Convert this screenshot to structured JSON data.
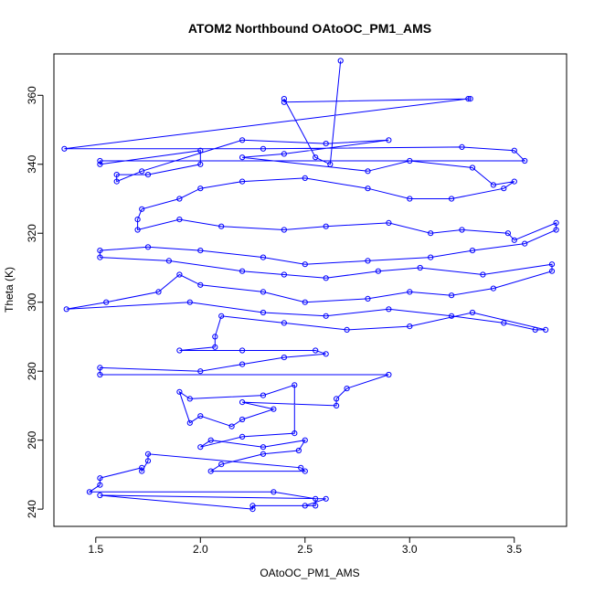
{
  "chart_data": {
    "type": "scatter",
    "title": "ATOM2 Northbound OAtoOC_PM1_AMS",
    "xlabel": "OAtoOC_PM1_AMS",
    "ylabel": "Theta (K)",
    "xlim": [
      1.3,
      3.75
    ],
    "ylim": [
      235,
      372
    ],
    "xticks": [
      1.5,
      2.0,
      2.5,
      3.0,
      3.5
    ],
    "xtick_labels": [
      "1.5",
      "2.0",
      "2.5",
      "3.0",
      "3.5"
    ],
    "yticks": [
      240,
      260,
      280,
      300,
      320,
      340,
      360
    ],
    "ytick_labels": [
      "240",
      "260",
      "280",
      "300",
      "320",
      "340",
      "360"
    ],
    "grid": false,
    "legend": "none",
    "series_color": "#0000ff",
    "markers": "open-circles-connected-by-lines",
    "series": [
      {
        "values_xy": [
          [
            2.67,
            370
          ],
          [
            2.62,
            340
          ],
          [
            2.55,
            342
          ],
          [
            2.4,
            359
          ],
          [
            2.4,
            358
          ],
          [
            3.29,
            359
          ],
          [
            3.28,
            359
          ],
          [
            1.35,
            344.5
          ],
          [
            2.3,
            344.5
          ],
          [
            3.25,
            345
          ],
          [
            3.5,
            344
          ],
          [
            3.55,
            341
          ],
          [
            1.52,
            341
          ],
          [
            1.52,
            340
          ],
          [
            2.0,
            344
          ],
          [
            2.0,
            340
          ],
          [
            1.75,
            337
          ],
          [
            1.6,
            337
          ],
          [
            1.6,
            335
          ],
          [
            1.72,
            338
          ],
          [
            2.2,
            347
          ],
          [
            2.6,
            346
          ],
          [
            2.9,
            347
          ],
          [
            2.4,
            343
          ],
          [
            2.2,
            342
          ],
          [
            2.8,
            338
          ],
          [
            3.0,
            341
          ],
          [
            3.3,
            339
          ],
          [
            3.4,
            334
          ],
          [
            3.5,
            335
          ],
          [
            3.45,
            333
          ],
          [
            3.2,
            330
          ],
          [
            3.0,
            330
          ],
          [
            2.8,
            333
          ],
          [
            2.5,
            336
          ],
          [
            2.2,
            335
          ],
          [
            2.0,
            333
          ],
          [
            1.9,
            330
          ],
          [
            1.72,
            327
          ],
          [
            1.7,
            324
          ],
          [
            1.7,
            321
          ],
          [
            1.9,
            324
          ],
          [
            2.1,
            322
          ],
          [
            2.4,
            321
          ],
          [
            2.6,
            322
          ],
          [
            2.9,
            323
          ],
          [
            3.1,
            320
          ],
          [
            3.25,
            321
          ],
          [
            3.47,
            320
          ],
          [
            3.5,
            318
          ],
          [
            3.7,
            323
          ],
          [
            3.7,
            321
          ],
          [
            3.55,
            317
          ],
          [
            3.3,
            315
          ],
          [
            3.1,
            313
          ],
          [
            2.8,
            312
          ],
          [
            2.5,
            311
          ],
          [
            2.3,
            313
          ],
          [
            2.0,
            315
          ],
          [
            1.75,
            316
          ],
          [
            1.52,
            315
          ],
          [
            1.52,
            313
          ],
          [
            1.85,
            312
          ],
          [
            2.2,
            309
          ],
          [
            2.4,
            308
          ],
          [
            2.6,
            307
          ],
          [
            2.85,
            309
          ],
          [
            3.05,
            310
          ],
          [
            3.35,
            308
          ],
          [
            3.68,
            311
          ],
          [
            3.68,
            309
          ],
          [
            3.4,
            304
          ],
          [
            3.2,
            302
          ],
          [
            3.0,
            303
          ],
          [
            2.8,
            301
          ],
          [
            2.5,
            300
          ],
          [
            2.3,
            303
          ],
          [
            2.0,
            305
          ],
          [
            1.9,
            308
          ],
          [
            1.8,
            303
          ],
          [
            1.55,
            300
          ],
          [
            1.36,
            298
          ],
          [
            1.95,
            300
          ],
          [
            2.3,
            297
          ],
          [
            2.6,
            296
          ],
          [
            2.9,
            298
          ],
          [
            3.2,
            296
          ],
          [
            3.45,
            294
          ],
          [
            3.6,
            292
          ],
          [
            3.65,
            292
          ],
          [
            3.3,
            297
          ],
          [
            3.0,
            293
          ],
          [
            2.7,
            292
          ],
          [
            2.4,
            294
          ],
          [
            2.1,
            296
          ],
          [
            2.07,
            290
          ],
          [
            2.07,
            287
          ],
          [
            1.9,
            286
          ],
          [
            2.2,
            286
          ],
          [
            2.55,
            286
          ],
          [
            2.6,
            285
          ],
          [
            2.4,
            284
          ],
          [
            2.2,
            282
          ],
          [
            2.0,
            280
          ],
          [
            1.52,
            281
          ],
          [
            1.52,
            279
          ],
          [
            2.9,
            279
          ],
          [
            2.7,
            275
          ],
          [
            2.65,
            272
          ],
          [
            2.65,
            270
          ],
          [
            2.2,
            271
          ],
          [
            2.35,
            269
          ],
          [
            2.2,
            266
          ],
          [
            2.15,
            264
          ],
          [
            2.0,
            267
          ],
          [
            1.95,
            265
          ],
          [
            1.9,
            274
          ],
          [
            1.95,
            272
          ],
          [
            2.3,
            273
          ],
          [
            2.45,
            276
          ],
          [
            2.45,
            262
          ],
          [
            2.2,
            261
          ],
          [
            2.0,
            258
          ],
          [
            2.05,
            260
          ],
          [
            2.3,
            258
          ],
          [
            2.5,
            260
          ],
          [
            2.47,
            257
          ],
          [
            2.3,
            256
          ],
          [
            2.1,
            253
          ],
          [
            2.05,
            251
          ],
          [
            2.5,
            251
          ],
          [
            2.48,
            252
          ],
          [
            1.75,
            256
          ],
          [
            1.75,
            254
          ],
          [
            1.72,
            251
          ],
          [
            1.72,
            252
          ],
          [
            1.52,
            249
          ],
          [
            1.52,
            247
          ],
          [
            1.47,
            245
          ],
          [
            2.35,
            245
          ],
          [
            2.55,
            243
          ],
          [
            2.55,
            241
          ],
          [
            2.25,
            241
          ],
          [
            2.25,
            240
          ],
          [
            1.52,
            244
          ],
          [
            2.6,
            243
          ],
          [
            2.5,
            241
          ]
        ]
      }
    ]
  }
}
